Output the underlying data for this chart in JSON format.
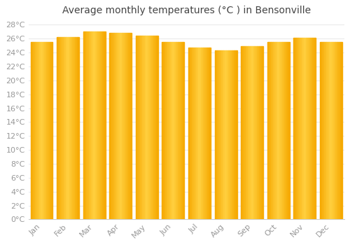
{
  "title": "Average monthly temperatures (°C ) in Bensonville",
  "months": [
    "Jan",
    "Feb",
    "Mar",
    "Apr",
    "May",
    "Jun",
    "Jul",
    "Aug",
    "Sep",
    "Oct",
    "Nov",
    "Dec"
  ],
  "values": [
    25.5,
    26.2,
    27.0,
    26.8,
    26.4,
    25.5,
    24.7,
    24.3,
    24.9,
    25.5,
    26.1,
    25.5
  ],
  "bar_color_center": "#FFD040",
  "bar_color_edge": "#F5A800",
  "ylim_max": 28,
  "ytick_step": 2,
  "background_color": "#FFFFFF",
  "grid_color": "#E8E8E8",
  "title_fontsize": 10,
  "tick_fontsize": 8,
  "bar_width": 0.85,
  "tick_color": "#999999",
  "spine_color": "#CCCCCC"
}
